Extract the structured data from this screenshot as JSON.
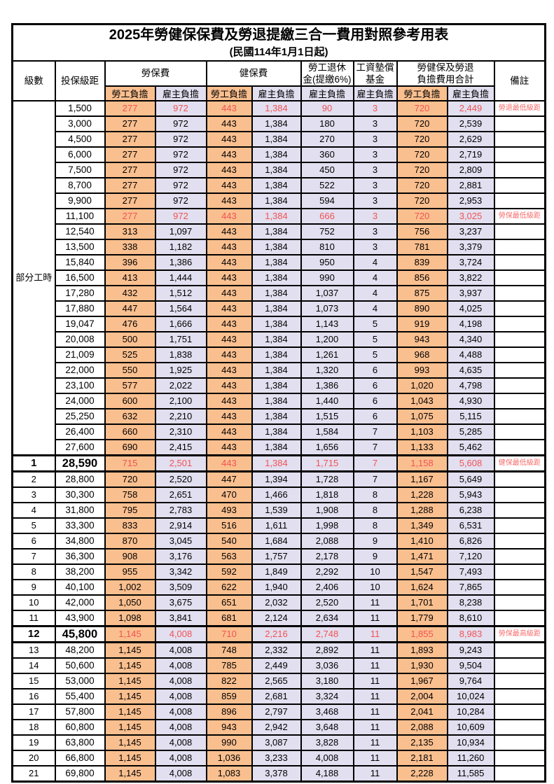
{
  "title": "2025年勞健保保費及勞退提繳三合一費用對照參考用表",
  "subtitle": "(民國114年1月1日起)",
  "header": {
    "level": "級數",
    "bracket": "投保級距",
    "labor_insurance": "勞保費",
    "health_insurance": "健保費",
    "pension_line1": "勞工退休",
    "pension_line2": "金(提繳6%)",
    "wage_fund_line1": "工資墊償",
    "wage_fund_line2": "基金",
    "total_line1": "勞健保及勞退",
    "total_line2": "負擔費用合計",
    "employee_label": "勞工負擔",
    "employer_label": "雇主負擔",
    "remark": "備註"
  },
  "part_time_label": "部分工時",
  "part_time_rowspan": 23,
  "colors": {
    "employee_bg": "#FABF8F",
    "employer_bg": "#E2DFF0",
    "highlight_text": "#F15353",
    "remark_text": "#F76C6C",
    "border": "#000000"
  },
  "rows": [
    {
      "level": "",
      "bracket": "1,500",
      "values": [
        "277",
        "972",
        "443",
        "1,384",
        "90",
        "3",
        "720",
        "2,449"
      ],
      "red": true,
      "bold": false,
      "remark": "勞退最低級距"
    },
    {
      "level": "",
      "bracket": "3,000",
      "values": [
        "277",
        "972",
        "443",
        "1,384",
        "180",
        "3",
        "720",
        "2,539"
      ],
      "red": false,
      "bold": false,
      "remark": ""
    },
    {
      "level": "",
      "bracket": "4,500",
      "values": [
        "277",
        "972",
        "443",
        "1,384",
        "270",
        "3",
        "720",
        "2,629"
      ],
      "red": false,
      "bold": false,
      "remark": ""
    },
    {
      "level": "",
      "bracket": "6,000",
      "values": [
        "277",
        "972",
        "443",
        "1,384",
        "360",
        "3",
        "720",
        "2,719"
      ],
      "red": false,
      "bold": false,
      "remark": ""
    },
    {
      "level": "",
      "bracket": "7,500",
      "values": [
        "277",
        "972",
        "443",
        "1,384",
        "450",
        "3",
        "720",
        "2,809"
      ],
      "red": false,
      "bold": false,
      "remark": ""
    },
    {
      "level": "",
      "bracket": "8,700",
      "values": [
        "277",
        "972",
        "443",
        "1,384",
        "522",
        "3",
        "720",
        "2,881"
      ],
      "red": false,
      "bold": false,
      "remark": ""
    },
    {
      "level": "",
      "bracket": "9,900",
      "values": [
        "277",
        "972",
        "443",
        "1,384",
        "594",
        "3",
        "720",
        "2,953"
      ],
      "red": false,
      "bold": false,
      "remark": ""
    },
    {
      "level": "",
      "bracket": "11,100",
      "values": [
        "277",
        "972",
        "443",
        "1,384",
        "666",
        "3",
        "720",
        "3,025"
      ],
      "red": true,
      "bold": false,
      "remark": "勞保最低級距"
    },
    {
      "level": "",
      "bracket": "12,540",
      "values": [
        "313",
        "1,097",
        "443",
        "1,384",
        "752",
        "3",
        "756",
        "3,237"
      ],
      "red": false,
      "bold": false,
      "remark": ""
    },
    {
      "level": "",
      "bracket": "13,500",
      "values": [
        "338",
        "1,182",
        "443",
        "1,384",
        "810",
        "3",
        "781",
        "3,379"
      ],
      "red": false,
      "bold": false,
      "remark": ""
    },
    {
      "level": "",
      "bracket": "15,840",
      "values": [
        "396",
        "1,386",
        "443",
        "1,384",
        "950",
        "4",
        "839",
        "3,724"
      ],
      "red": false,
      "bold": false,
      "remark": ""
    },
    {
      "level": "",
      "bracket": "16,500",
      "values": [
        "413",
        "1,444",
        "443",
        "1,384",
        "990",
        "4",
        "856",
        "3,822"
      ],
      "red": false,
      "bold": false,
      "remark": ""
    },
    {
      "level": "",
      "bracket": "17,280",
      "values": [
        "432",
        "1,512",
        "443",
        "1,384",
        "1,037",
        "4",
        "875",
        "3,937"
      ],
      "red": false,
      "bold": false,
      "remark": ""
    },
    {
      "level": "",
      "bracket": "17,880",
      "values": [
        "447",
        "1,564",
        "443",
        "1,384",
        "1,073",
        "4",
        "890",
        "4,025"
      ],
      "red": false,
      "bold": false,
      "remark": ""
    },
    {
      "level": "",
      "bracket": "19,047",
      "values": [
        "476",
        "1,666",
        "443",
        "1,384",
        "1,143",
        "5",
        "919",
        "4,198"
      ],
      "red": false,
      "bold": false,
      "remark": ""
    },
    {
      "level": "",
      "bracket": "20,008",
      "values": [
        "500",
        "1,751",
        "443",
        "1,384",
        "1,200",
        "5",
        "943",
        "4,340"
      ],
      "red": false,
      "bold": false,
      "remark": ""
    },
    {
      "level": "",
      "bracket": "21,009",
      "values": [
        "525",
        "1,838",
        "443",
        "1,384",
        "1,261",
        "5",
        "968",
        "4,488"
      ],
      "red": false,
      "bold": false,
      "remark": ""
    },
    {
      "level": "",
      "bracket": "22,000",
      "values": [
        "550",
        "1,925",
        "443",
        "1,384",
        "1,320",
        "6",
        "993",
        "4,635"
      ],
      "red": false,
      "bold": false,
      "remark": ""
    },
    {
      "level": "",
      "bracket": "23,100",
      "values": [
        "577",
        "2,022",
        "443",
        "1,384",
        "1,386",
        "6",
        "1,020",
        "4,798"
      ],
      "red": false,
      "bold": false,
      "remark": ""
    },
    {
      "level": "",
      "bracket": "24,000",
      "values": [
        "600",
        "2,100",
        "443",
        "1,384",
        "1,440",
        "6",
        "1,043",
        "4,930"
      ],
      "red": false,
      "bold": false,
      "remark": ""
    },
    {
      "level": "",
      "bracket": "25,250",
      "values": [
        "632",
        "2,210",
        "443",
        "1,384",
        "1,515",
        "6",
        "1,075",
        "5,115"
      ],
      "red": false,
      "bold": false,
      "remark": ""
    },
    {
      "level": "",
      "bracket": "26,400",
      "values": [
        "660",
        "2,310",
        "443",
        "1,384",
        "1,584",
        "7",
        "1,103",
        "5,285"
      ],
      "red": false,
      "bold": false,
      "remark": ""
    },
    {
      "level": "",
      "bracket": "27,600",
      "values": [
        "690",
        "2,415",
        "443",
        "1,384",
        "1,656",
        "7",
        "1,133",
        "5,462"
      ],
      "red": false,
      "bold": false,
      "remark": ""
    },
    {
      "level": "1",
      "bracket": "28,590",
      "values": [
        "715",
        "2,501",
        "443",
        "1,384",
        "1,715",
        "7",
        "1,158",
        "5,608"
      ],
      "red": true,
      "bold": true,
      "remark": "健保最低級距"
    },
    {
      "level": "2",
      "bracket": "28,800",
      "values": [
        "720",
        "2,520",
        "447",
        "1,394",
        "1,728",
        "7",
        "1,167",
        "5,649"
      ],
      "red": false,
      "bold": false,
      "remark": ""
    },
    {
      "level": "3",
      "bracket": "30,300",
      "values": [
        "758",
        "2,651",
        "470",
        "1,466",
        "1,818",
        "8",
        "1,228",
        "5,943"
      ],
      "red": false,
      "bold": false,
      "remark": ""
    },
    {
      "level": "4",
      "bracket": "31,800",
      "values": [
        "795",
        "2,783",
        "493",
        "1,539",
        "1,908",
        "8",
        "1,288",
        "6,238"
      ],
      "red": false,
      "bold": false,
      "remark": ""
    },
    {
      "level": "5",
      "bracket": "33,300",
      "values": [
        "833",
        "2,914",
        "516",
        "1,611",
        "1,998",
        "8",
        "1,349",
        "6,531"
      ],
      "red": false,
      "bold": false,
      "remark": ""
    },
    {
      "level": "6",
      "bracket": "34,800",
      "values": [
        "870",
        "3,045",
        "540",
        "1,684",
        "2,088",
        "9",
        "1,410",
        "6,826"
      ],
      "red": false,
      "bold": false,
      "remark": ""
    },
    {
      "level": "7",
      "bracket": "36,300",
      "values": [
        "908",
        "3,176",
        "563",
        "1,757",
        "2,178",
        "9",
        "1,471",
        "7,120"
      ],
      "red": false,
      "bold": false,
      "remark": ""
    },
    {
      "level": "8",
      "bracket": "38,200",
      "values": [
        "955",
        "3,342",
        "592",
        "1,849",
        "2,292",
        "10",
        "1,547",
        "7,493"
      ],
      "red": false,
      "bold": false,
      "remark": ""
    },
    {
      "level": "9",
      "bracket": "40,100",
      "values": [
        "1,002",
        "3,509",
        "622",
        "1,940",
        "2,406",
        "10",
        "1,624",
        "7,865"
      ],
      "red": false,
      "bold": false,
      "remark": ""
    },
    {
      "level": "10",
      "bracket": "42,000",
      "values": [
        "1,050",
        "3,675",
        "651",
        "2,032",
        "2,520",
        "11",
        "1,701",
        "8,238"
      ],
      "red": false,
      "bold": false,
      "remark": ""
    },
    {
      "level": "11",
      "bracket": "43,900",
      "values": [
        "1,098",
        "3,841",
        "681",
        "2,124",
        "2,634",
        "11",
        "1,779",
        "8,610"
      ],
      "red": false,
      "bold": false,
      "remark": ""
    },
    {
      "level": "12",
      "bracket": "45,800",
      "values": [
        "1,145",
        "4,008",
        "710",
        "2,216",
        "2,748",
        "11",
        "1,855",
        "8,983"
      ],
      "red": true,
      "bold": true,
      "remark": "勞保最高級距"
    },
    {
      "level": "13",
      "bracket": "48,200",
      "values": [
        "1,145",
        "4,008",
        "748",
        "2,332",
        "2,892",
        "11",
        "1,893",
        "9,243"
      ],
      "red": false,
      "bold": false,
      "remark": ""
    },
    {
      "level": "14",
      "bracket": "50,600",
      "values": [
        "1,145",
        "4,008",
        "785",
        "2,449",
        "3,036",
        "11",
        "1,930",
        "9,504"
      ],
      "red": false,
      "bold": false,
      "remark": ""
    },
    {
      "level": "15",
      "bracket": "53,000",
      "values": [
        "1,145",
        "4,008",
        "822",
        "2,565",
        "3,180",
        "11",
        "1,967",
        "9,764"
      ],
      "red": false,
      "bold": false,
      "remark": ""
    },
    {
      "level": "16",
      "bracket": "55,400",
      "values": [
        "1,145",
        "4,008",
        "859",
        "2,681",
        "3,324",
        "11",
        "2,004",
        "10,024"
      ],
      "red": false,
      "bold": false,
      "remark": ""
    },
    {
      "level": "17",
      "bracket": "57,800",
      "values": [
        "1,145",
        "4,008",
        "896",
        "2,797",
        "3,468",
        "11",
        "2,041",
        "10,284"
      ],
      "red": false,
      "bold": false,
      "remark": ""
    },
    {
      "level": "18",
      "bracket": "60,800",
      "values": [
        "1,145",
        "4,008",
        "943",
        "2,942",
        "3,648",
        "11",
        "2,088",
        "10,609"
      ],
      "red": false,
      "bold": false,
      "remark": ""
    },
    {
      "level": "19",
      "bracket": "63,800",
      "values": [
        "1,145",
        "4,008",
        "990",
        "3,087",
        "3,828",
        "11",
        "2,135",
        "10,934"
      ],
      "red": false,
      "bold": false,
      "remark": ""
    },
    {
      "level": "20",
      "bracket": "66,800",
      "values": [
        "1,145",
        "4,008",
        "1,036",
        "3,233",
        "4,008",
        "11",
        "2,181",
        "11,260"
      ],
      "red": false,
      "bold": false,
      "remark": ""
    },
    {
      "level": "21",
      "bracket": "69,800",
      "values": [
        "1,145",
        "4,008",
        "1,083",
        "3,378",
        "4,188",
        "11",
        "2,228",
        "11,585"
      ],
      "red": false,
      "bold": false,
      "remark": ""
    }
  ]
}
